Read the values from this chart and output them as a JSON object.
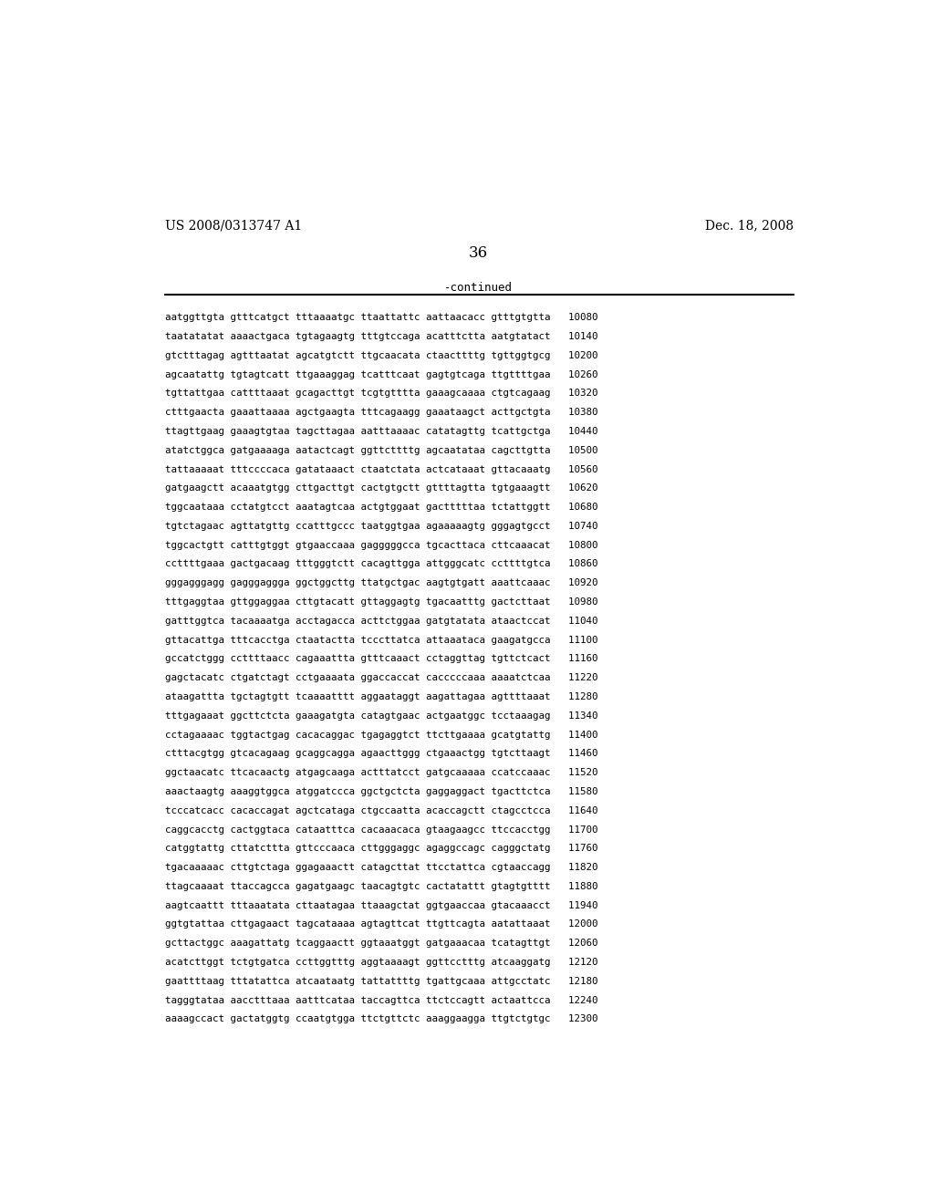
{
  "header_left": "US 2008/0313747 A1",
  "header_right": "Dec. 18, 2008",
  "page_number": "36",
  "continued_label": "-continued",
  "background_color": "#ffffff",
  "text_color": "#000000",
  "font_size": 7.8,
  "header_font_size": 10,
  "page_num_font_size": 12,
  "continued_font_size": 9,
  "lines": [
    "aatggttgta gtttcatgct tttaaaatgc ttaattattc aattaacacc gtttgtgtta   10080",
    "taatatatat aaaactgaca tgtagaagtg tttgtccaga acatttctta aatgtatact   10140",
    "gtctttagag agtttaatat agcatgtctt ttgcaacata ctaacttttg tgttggtgcg   10200",
    "agcaatattg tgtagtcatt ttgaaaggag tcatttcaat gagtgtcaga ttgttttgaa   10260",
    "tgttattgaa cattttaaat gcagacttgt tcgtgtttta gaaagcaaaa ctgtcagaag   10320",
    "ctttgaacta gaaattaaaa agctgaagta tttcagaagg gaaataagct acttgctgta   10380",
    "ttagttgaag gaaagtgtaa tagcttagaa aatttaaaac catatagttg tcattgctga   10440",
    "atatctggca gatgaaaaga aatactcagt ggttcttttg agcaatataa cagcttgtta   10500",
    "tattaaaaat tttccccaca gatataaact ctaatctata actcataaat gttacaaatg   10560",
    "gatgaagctt acaaatgtgg cttgacttgt cactgtgctt gttttagtta tgtgaaagtt   10620",
    "tggcaataaa cctatgtcct aaatagtcaa actgtggaat gactttttaa tctattggtt   10680",
    "tgtctagaac agttatgttg ccatttgccc taatggtgaa agaaaaagtg gggagtgcct   10740",
    "tggcactgtt catttgtggt gtgaaccaaa gagggggcca tgcacttaca cttcaaacat   10800",
    "ccttttgaaa gactgacaag tttgggtctt cacagttgga attgggcatc ccttttgtca   10860",
    "gggagggagg gagggaggga ggctggcttg ttatgctgac aagtgtgatt aaattcaaac   10920",
    "tttgaggtaa gttggaggaa cttgtacatt gttaggagtg tgacaatttg gactcttaat   10980",
    "gatttggtca tacaaaatga acctagacca acttctggaa gatgtatata ataactccat   11040",
    "gttacattga tttcacctga ctaatactta tcccttatca attaaataca gaagatgcca   11100",
    "gccatctggg ccttttaacc cagaaattta gtttcaaact cctaggttag tgttctcact   11160",
    "gagctacatc ctgatctagt cctgaaaata ggaccaccat cacccccaaa aaaatctcaa   11220",
    "ataagattta tgctagtgtt tcaaaatttt aggaataggt aagattagaa agttttaaat   11280",
    "tttgagaaat ggcttctcta gaaagatgta catagtgaac actgaatggc tcctaaagag   11340",
    "cctagaaaac tggtactgag cacacaggac tgagaggtct ttcttgaaaa gcatgtattg   11400",
    "ctttacgtgg gtcacagaag gcaggcagga agaacttggg ctgaaactgg tgtcttaagt   11460",
    "ggctaacatc ttcacaactg atgagcaaga actttatcct gatgcaaaaa ccatccaaac   11520",
    "aaactaagtg aaaggtggca atggatccca ggctgctcta gaggaggact tgacttctca   11580",
    "tcccatcacc cacaccagat agctcataga ctgccaatta acaccagctt ctagcctcca   11640",
    "caggcacctg cactggtaca cataatttca cacaaacaca gtaagaagcc ttccacctgg   11700",
    "catggtattg cttatcttta gttcccaaca cttgggaggc agaggccagc cagggctatg   11760",
    "tgacaaaaac cttgtctaga ggagaaactt catagcttat ttcctattca cgtaaccagg   11820",
    "ttagcaaaat ttaccagcca gagatgaagc taacagtgtc cactatattt gtagtgtttt   11880",
    "aagtcaattt tttaaatata cttaatagaa ttaaagctat ggtgaaccaa gtacaaacct   11940",
    "ggtgtattaa cttgagaact tagcataaaa agtagttcat ttgttcagta aatattaaat   12000",
    "gcttactggc aaagattatg tcaggaactt ggtaaatggt gatgaaacaa tcatagttgt   12060",
    "acatcttggt tctgtgatca ccttggtttg aggtaaaagt ggttcctttg atcaaggatg   12120",
    "gaattttaag tttatattca atcaataatg tattattttg tgattgcaaa attgcctatc   12180",
    "tagggtataa aacctttaaa aatttcataa taccagttca ttctccagtt actaattcca   12240",
    "aaaagccact gactatggtg ccaatgtgga ttctgttctc aaaggaagga ttgtctgtgc   12300"
  ]
}
